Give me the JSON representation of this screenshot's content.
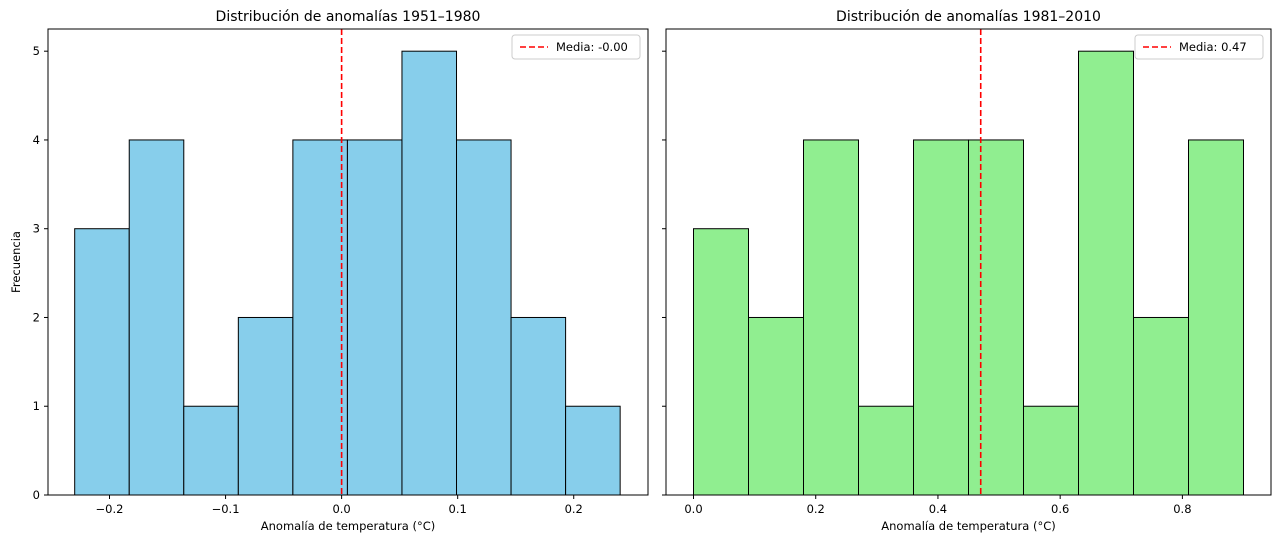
{
  "chart_data": [
    {
      "type": "bar",
      "title": "Distribución de anomalías 1951–1980",
      "xlabel": "Anomalía de temperatura (°C)",
      "ylabel": "Frecuencia",
      "xlim": [
        -0.253,
        0.264
      ],
      "ylim": [
        0,
        5.25
      ],
      "bin_edges": [
        -0.23,
        -0.183,
        -0.136,
        -0.089,
        -0.042,
        0.005,
        0.052,
        0.099,
        0.146,
        0.193,
        0.24
      ],
      "values": [
        3,
        4,
        1,
        2,
        4,
        4,
        5,
        4,
        2,
        1
      ],
      "bar_color": "#87ceeb",
      "edge_color": "#000000",
      "x_ticks": [
        -0.2,
        -0.1,
        0.0,
        0.1,
        0.2
      ],
      "x_tick_labels": [
        "−0.2",
        "−0.1",
        "0.0",
        "0.1",
        "0.2"
      ],
      "y_ticks": [
        0,
        1,
        2,
        3,
        4,
        5
      ],
      "y_tick_labels": [
        "0",
        "1",
        "2",
        "3",
        "4",
        "5"
      ],
      "mean_line": {
        "x": 0.0,
        "label": "Media: -0.00",
        "color": "#ff0000"
      },
      "legend_position": "top-right",
      "grid": false
    },
    {
      "type": "bar",
      "title": "Distribución de anomalías 1981–2010",
      "xlabel": "Anomalía de temperatura (°C)",
      "ylabel": "",
      "xlim": [
        -0.045,
        0.945
      ],
      "ylim": [
        0,
        5.25
      ],
      "bin_edges": [
        0.0,
        0.09,
        0.18,
        0.27,
        0.36,
        0.45,
        0.54,
        0.63,
        0.72,
        0.81,
        0.9
      ],
      "values": [
        3,
        2,
        4,
        1,
        4,
        4,
        1,
        5,
        2,
        4
      ],
      "bar_color": "#90ee90",
      "edge_color": "#000000",
      "x_ticks": [
        0.0,
        0.2,
        0.4,
        0.6,
        0.8
      ],
      "x_tick_labels": [
        "0.0",
        "0.2",
        "0.4",
        "0.6",
        "0.8"
      ],
      "y_ticks": [
        0,
        1,
        2,
        3,
        4,
        5
      ],
      "y_tick_labels": [],
      "mean_line": {
        "x": 0.47,
        "label": "Media: 0.47",
        "color": "#ff0000"
      },
      "legend_position": "top-right",
      "grid": false
    }
  ]
}
